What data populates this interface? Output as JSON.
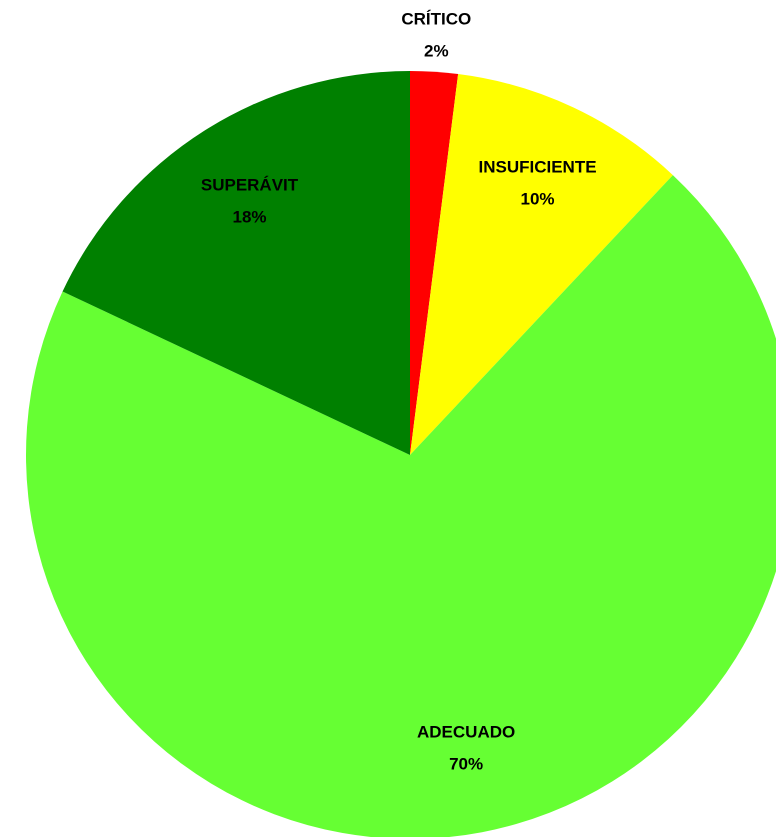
{
  "chart_data": {
    "type": "pie",
    "categories": [
      "CRÍTICO",
      "INSUFICIENTE",
      "ADECUADO",
      "SUPERÁVIT"
    ],
    "values": [
      2,
      10,
      70,
      18
    ],
    "value_labels": [
      "2%",
      "10%",
      "70%",
      "18%"
    ],
    "colors": [
      "#ff0000",
      "#ffff00",
      "#66ff33",
      "#008000"
    ]
  }
}
